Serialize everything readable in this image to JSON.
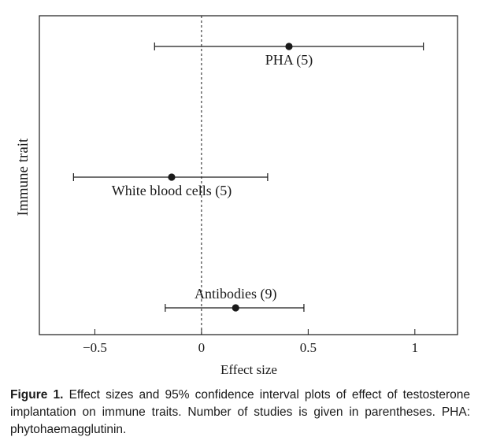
{
  "chart_data": {
    "type": "forest",
    "ylabel": "Immune trait",
    "xlabel": "Effect size",
    "xlim": [
      -0.76,
      1.2
    ],
    "xticks": [
      -0.5,
      0,
      0.5,
      1
    ],
    "xtick_labels": [
      "−0.5",
      "0",
      "0.5",
      "1"
    ],
    "reference_line": 0,
    "points": [
      {
        "label": "PHA (5)",
        "estimate": 0.41,
        "ci_low": -0.22,
        "ci_high": 1.04,
        "label_position": "below"
      },
      {
        "label": "White blood cells (5)",
        "estimate": -0.14,
        "ci_low": -0.6,
        "ci_high": 0.31,
        "label_position": "below"
      },
      {
        "label": "Antibodies (9)",
        "estimate": 0.16,
        "ci_low": -0.17,
        "ci_high": 0.48,
        "label_position": "above"
      }
    ]
  },
  "caption": {
    "label": "Figure 1.",
    "text": "Effect sizes and 95% confidence interval plots of effect of testosterone implantation on immune traits. Number of studies is given in parentheses. PHA: phytohaemagglutinin."
  }
}
